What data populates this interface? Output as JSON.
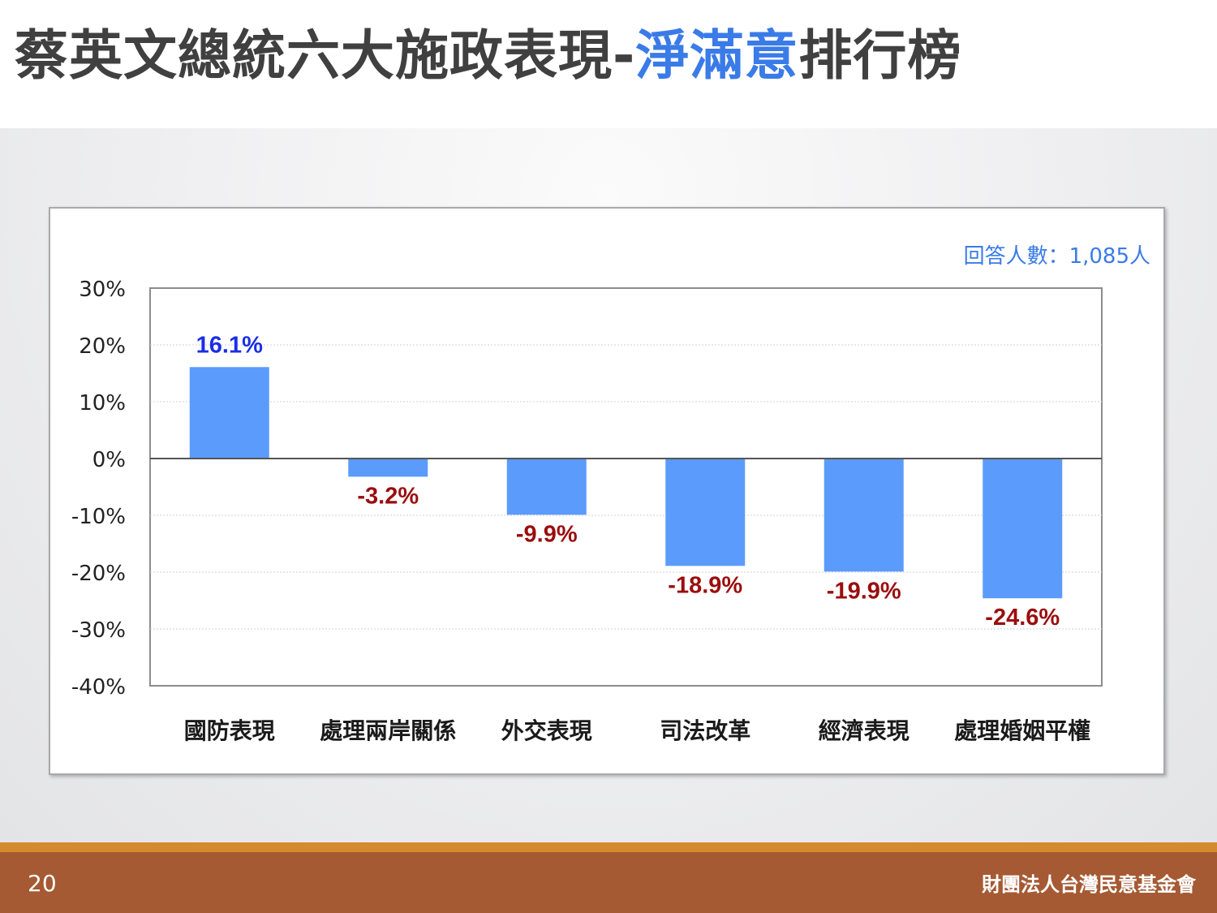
{
  "title": {
    "prefix": "蔡英文總統六大施政表現-",
    "highlight": "淨滿意",
    "suffix": "排行榜"
  },
  "respondents": "回答人數：1,085人",
  "footer": {
    "page_number": "20",
    "organization": "財團法人台灣民意基金會"
  },
  "colors": {
    "bar": "#5b9bfc",
    "positive_label": "#1a2ee6",
    "negative_label": "#9b0d0d",
    "title_highlight": "#3a7be8"
  },
  "chart_data": {
    "type": "bar",
    "categories": [
      "國防表現",
      "處理兩岸關係",
      "外交表現",
      "司法改革",
      "經濟表現",
      "處理婚姻平權"
    ],
    "values": [
      16.1,
      -3.2,
      -9.9,
      -18.9,
      -19.9,
      -24.6
    ],
    "data_labels": [
      "16.1%",
      "-3.2%",
      "-9.9%",
      "-18.9%",
      "-19.9%",
      "-24.6%"
    ],
    "ylim": [
      -40,
      30
    ],
    "yticks": [
      30,
      20,
      10,
      0,
      -10,
      -20,
      -30,
      -40
    ],
    "ytick_labels": [
      "30%",
      "20%",
      "10%",
      "0%",
      "-10%",
      "-20%",
      "-30%",
      "-40%"
    ],
    "grid": true,
    "legend": "none"
  }
}
